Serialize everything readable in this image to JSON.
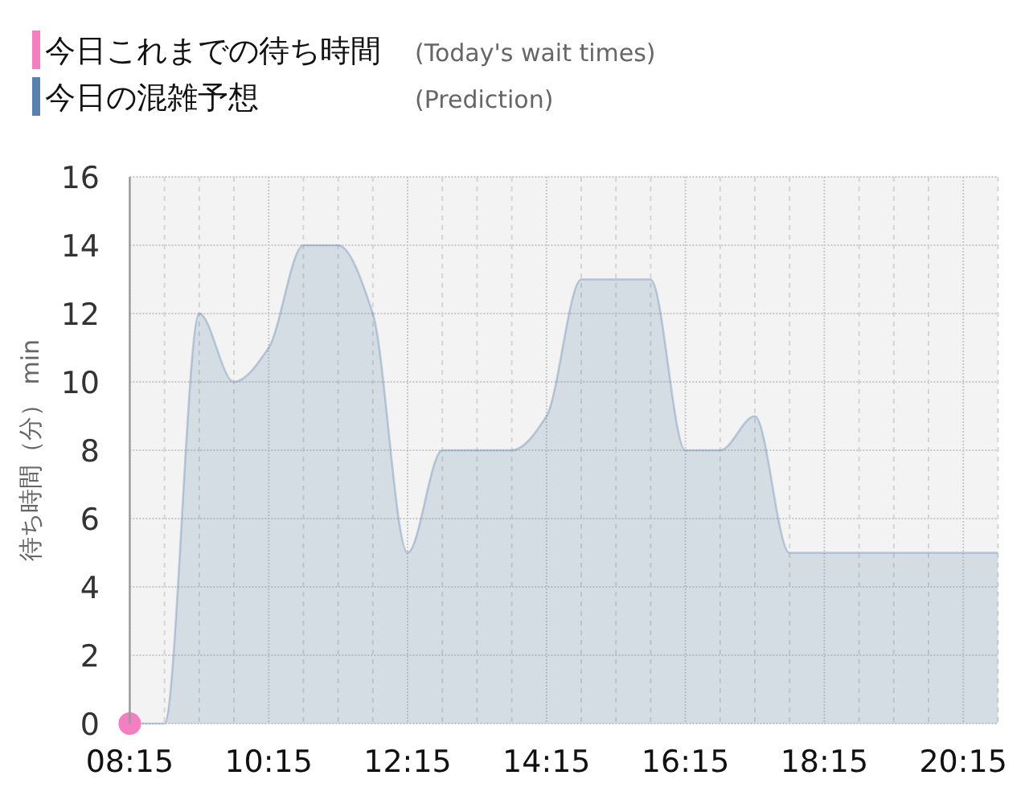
{
  "chart_data": {
    "type": "area",
    "x": [
      8.25,
      8.75,
      9.25,
      9.75,
      10.25,
      10.75,
      11.25,
      11.75,
      12.25,
      12.75,
      13.25,
      13.75,
      14.25,
      14.75,
      15.25,
      15.75,
      16.25,
      16.75,
      17.25,
      17.75,
      18.25,
      18.75,
      19.25,
      19.75,
      20.25,
      20.75
    ],
    "series": [
      {
        "name": "今日これまでの待ち時間 (Today's wait times)",
        "type": "scatter",
        "marker": "circle",
        "color": "#f47fc0",
        "x": [
          8.25
        ],
        "values": [
          0
        ]
      },
      {
        "name": "今日の混雑予想 (Prediction)",
        "color": "#5b80ab",
        "values": [
          0,
          0,
          12,
          10,
          11,
          14,
          14,
          12,
          5,
          8,
          8,
          8,
          9,
          13,
          13,
          13,
          8,
          8,
          9,
          5,
          5,
          5,
          5,
          5,
          5,
          5
        ]
      }
    ],
    "ylabel": "待ち時間（分） min",
    "xlim": [
      8.25,
      20.75
    ],
    "ylim": [
      0,
      16
    ],
    "xticks": [
      {
        "value": 8.25,
        "label": "08:15"
      },
      {
        "value": 8.75,
        "label": null
      },
      {
        "value": 9.25,
        "label": null
      },
      {
        "value": 9.75,
        "label": null
      },
      {
        "value": 10.25,
        "label": "10:15"
      },
      {
        "value": 10.75,
        "label": null
      },
      {
        "value": 11.25,
        "label": null
      },
      {
        "value": 11.75,
        "label": null
      },
      {
        "value": 12.25,
        "label": "12:15"
      },
      {
        "value": 12.75,
        "label": null
      },
      {
        "value": 13.25,
        "label": null
      },
      {
        "value": 13.75,
        "label": null
      },
      {
        "value": 14.25,
        "label": "14:15"
      },
      {
        "value": 14.75,
        "label": null
      },
      {
        "value": 15.25,
        "label": null
      },
      {
        "value": 15.75,
        "label": null
      },
      {
        "value": 16.25,
        "label": "16:15"
      },
      {
        "value": 16.75,
        "label": null
      },
      {
        "value": 17.25,
        "label": null
      },
      {
        "value": 17.75,
        "label": null
      },
      {
        "value": 18.25,
        "label": "18:15"
      },
      {
        "value": 18.75,
        "label": null
      },
      {
        "value": 19.25,
        "label": null
      },
      {
        "value": 19.75,
        "label": null
      },
      {
        "value": 20.25,
        "label": "20:15"
      },
      {
        "value": 20.75,
        "label": null
      }
    ],
    "yticks": [
      0,
      2,
      4,
      6,
      8,
      10,
      12,
      14,
      16
    ],
    "grid": true,
    "legend": "top left"
  }
}
